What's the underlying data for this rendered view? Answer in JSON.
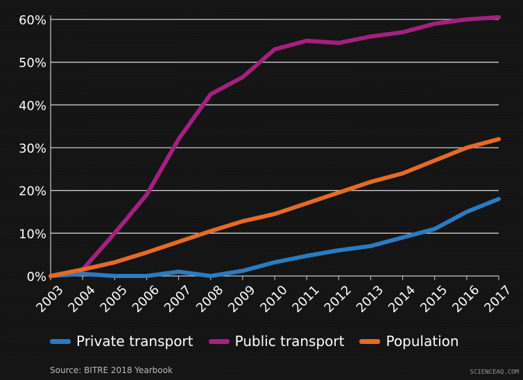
{
  "chart_data": {
    "type": "line",
    "categories": [
      "2003",
      "2004",
      "2005",
      "2006",
      "2007",
      "2008",
      "2009",
      "2010",
      "2011",
      "2012",
      "2013",
      "2014",
      "2015",
      "2016",
      "2017"
    ],
    "series": [
      {
        "name": "Private transport",
        "color": "#2a7bc0",
        "values": [
          0,
          0.5,
          0,
          0,
          1,
          0,
          1.2,
          3.2,
          4.7,
          6,
          7,
          9,
          11,
          15,
          18
        ]
      },
      {
        "name": "Public transport",
        "color": "#a4207f",
        "values": [
          0,
          1.5,
          10,
          19,
          32,
          42.5,
          46.5,
          53,
          55,
          54.5,
          56,
          57,
          59,
          60,
          60.5
        ]
      },
      {
        "name": "Population",
        "color": "#e46a26",
        "values": [
          0,
          1.5,
          3.2,
          5.5,
          8,
          10.5,
          12.8,
          14.5,
          17,
          19.5,
          22,
          24,
          27,
          30,
          32
        ]
      }
    ],
    "yticks": [
      "0%",
      "10%",
      "20%",
      "30%",
      "40%",
      "50%",
      "60%"
    ],
    "ylim": [
      0,
      60
    ],
    "grid": true,
    "legend": "bottom",
    "source": "Source: BITRE 2018 Yearbook"
  },
  "watermark": "SCIENCEAQ.COM"
}
